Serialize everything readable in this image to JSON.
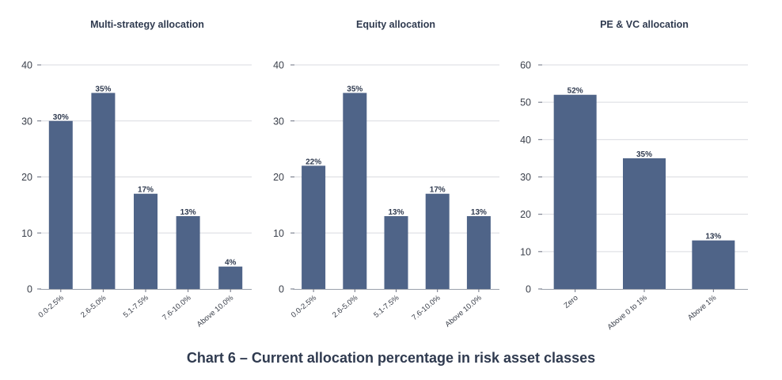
{
  "caption": "Chart 6 – Current allocation percentage in risk asset classes",
  "colors": {
    "bar": "#4f6488",
    "grid": "#d9dbe0",
    "text": "#2f3a4f"
  },
  "chart_data": [
    {
      "type": "bar",
      "title": "Multi-strategy allocation",
      "categories": [
        "0.0-2.5%",
        "2.6-5.0%",
        "5.1-7.5%",
        "7.6-10.0%",
        "Above 10.0%"
      ],
      "values": [
        30,
        35,
        17,
        13,
        4
      ],
      "data_labels": [
        "30%",
        "35%",
        "17%",
        "13%",
        "4%"
      ],
      "ylim": [
        0,
        40
      ],
      "yticks": [
        0,
        10,
        20,
        30,
        40
      ],
      "grid": true
    },
    {
      "type": "bar",
      "title": "Equity allocation",
      "categories": [
        "0.0-2.5%",
        "2.6-5.0%",
        "5.1-7.5%",
        "7.6-10.0%",
        "Above 10.0%"
      ],
      "values": [
        22,
        35,
        13,
        17,
        13
      ],
      "data_labels": [
        "22%",
        "35%",
        "13%",
        "17%",
        "13%"
      ],
      "ylim": [
        0,
        40
      ],
      "yticks": [
        0,
        10,
        20,
        30,
        40
      ],
      "grid": true
    },
    {
      "type": "bar",
      "title": "PE & VC allocation",
      "categories": [
        "Zero",
        "Above 0 to 1%",
        "Above 1%"
      ],
      "values": [
        52,
        35,
        13
      ],
      "data_labels": [
        "52%",
        "35%",
        "13%"
      ],
      "ylim": [
        0,
        60
      ],
      "yticks": [
        0,
        10,
        20,
        30,
        40,
        50,
        60
      ],
      "grid": true
    }
  ]
}
